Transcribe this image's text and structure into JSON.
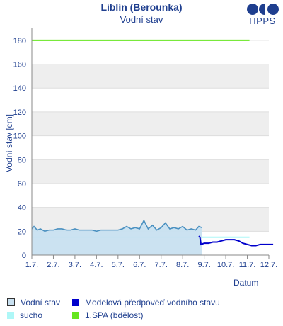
{
  "header": {
    "title": "Liblín (Berounka)",
    "subtitle": "Vodní stav",
    "logo_text": "HPPS"
  },
  "legend": {
    "items": [
      {
        "label": "Vodní stav",
        "color": "#c8e0f0",
        "border": "#333333"
      },
      {
        "label": "Modelová předpověď vodního stavu",
        "color": "#0000cc"
      },
      {
        "label": "sucho",
        "color": "#aef7f7"
      },
      {
        "label": "1.SPA (bdělost)",
        "color": "#66e61f"
      }
    ]
  },
  "chart_data": {
    "type": "line",
    "ylabel": "Vodní stav [cm]",
    "xlabel": "Datum",
    "ylim": [
      0,
      190
    ],
    "yticks": [
      0,
      20,
      40,
      60,
      80,
      100,
      120,
      140,
      160,
      180
    ],
    "xticks": [
      "1.7.",
      "2.7.",
      "3.7.",
      "4.7.",
      "5.7.",
      "6.7.",
      "7.7.",
      "8.7.",
      "9.7.",
      "10.7.",
      "11.7.",
      "12.7."
    ],
    "xlim_days": [
      1,
      12
    ],
    "grid": true,
    "spa1_level": 180,
    "drought_level": 15,
    "series": [
      {
        "name": "Vodní stav",
        "color": "#4a90c0",
        "fill": "#c8e0f0",
        "x": [
          1.0,
          1.1,
          1.25,
          1.4,
          1.6,
          1.8,
          2.0,
          2.2,
          2.4,
          2.6,
          2.8,
          3.0,
          3.2,
          3.4,
          3.6,
          3.8,
          4.0,
          4.2,
          4.4,
          4.6,
          4.8,
          5.0,
          5.2,
          5.4,
          5.6,
          5.8,
          6.0,
          6.2,
          6.4,
          6.6,
          6.8,
          7.0,
          7.2,
          7.4,
          7.6,
          7.8,
          8.0,
          8.2,
          8.4,
          8.6,
          8.75,
          8.9
        ],
        "values": [
          22,
          24,
          21,
          22,
          20,
          21,
          21,
          22,
          22,
          21,
          21,
          22,
          21,
          21,
          21,
          21,
          20,
          21,
          21,
          21,
          21,
          21,
          22,
          24,
          22,
          23,
          22,
          29,
          22,
          25,
          21,
          23,
          27,
          22,
          23,
          22,
          24,
          21,
          22,
          21,
          24,
          23
        ]
      },
      {
        "name": "Modelová předpověď vodního stavu",
        "color": "#0000cc",
        "x": [
          8.75,
          8.8,
          8.85,
          9.0,
          9.2,
          9.4,
          9.6,
          9.8,
          10.0,
          10.2,
          10.4,
          10.6,
          10.8,
          11.0,
          11.2,
          11.4,
          11.6,
          11.8,
          12.0,
          12.2
        ],
        "values": [
          16,
          15,
          9,
          10,
          10,
          11,
          11,
          12,
          13,
          13,
          13,
          12,
          10,
          9,
          8,
          8,
          9,
          9,
          9,
          9
        ]
      }
    ]
  }
}
